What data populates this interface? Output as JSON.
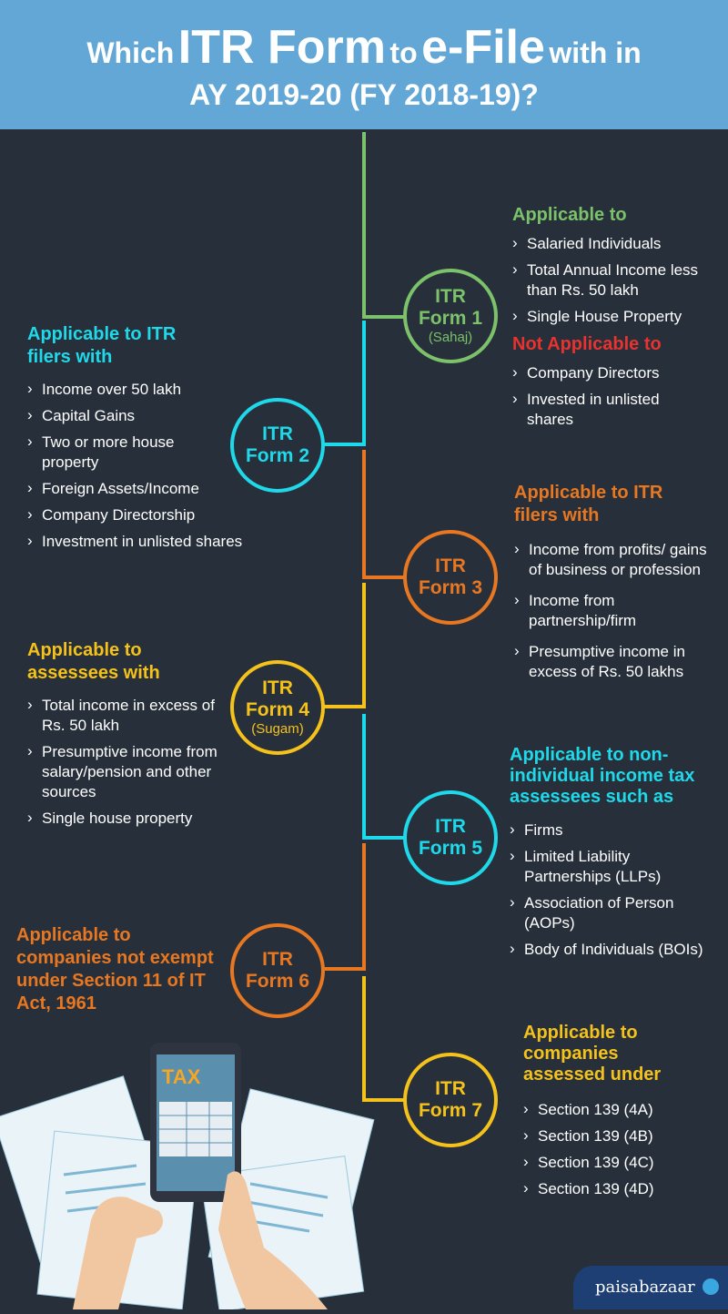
{
  "header": {
    "w1": "Which",
    "w2": "ITR Form",
    "w3": "to",
    "w4": "e-File",
    "w5": "with in",
    "line2": "AY 2019-20 (FY 2018-19)?"
  },
  "colors": {
    "background": "#27303a",
    "header": "#62a7d6",
    "green": "#7bc26a",
    "cyan": "#1fd9ea",
    "orange": "#e87722",
    "yellow": "#f5c21b",
    "red": "#e8322f"
  },
  "forms": {
    "f1": {
      "line1": "ITR",
      "line2": "Form 1",
      "sub": "(Sahaj)"
    },
    "f2": {
      "line1": "ITR",
      "line2": "Form 2"
    },
    "f3": {
      "line1": "ITR",
      "line2": "Form 3"
    },
    "f4": {
      "line1": "ITR",
      "line2": "Form 4",
      "sub": "(Sugam)"
    },
    "f5": {
      "line1": "ITR",
      "line2": "Form 5"
    },
    "f6": {
      "line1": "ITR",
      "line2": "Form 6"
    },
    "f7": {
      "line1": "ITR",
      "line2": "Form 7"
    }
  },
  "itr1": {
    "applicable_heading": "Applicable to",
    "applicable": [
      "Salaried Individuals",
      "Total Annual Income less than Rs. 50 lakh",
      "Single House Property"
    ],
    "not_applicable_heading": "Not Applicable to",
    "not_applicable": [
      "Company Directors",
      "Invested in unlisted shares"
    ]
  },
  "itr2": {
    "heading": "Applicable to ITR filers with",
    "items": [
      "Income over 50 lakh",
      "Capital Gains",
      "Two or more house property",
      "Foreign Assets/Income",
      "Company Directorship",
      "Investment in unlisted shares"
    ]
  },
  "itr3": {
    "heading": "Applicable to ITR filers with",
    "items": [
      "Income from profits/ gains of business or profession",
      "Income from partnership/firm",
      "Presumptive income in excess of Rs. 50 lakhs"
    ]
  },
  "itr4": {
    "heading": "Applicable to assessees with",
    "items": [
      "Total income in excess of Rs. 50 lakh",
      "Presumptive income from salary/pension and other sources",
      "Single house property"
    ]
  },
  "itr5": {
    "heading": "Applicable to non-individual income tax assessees such as",
    "items": [
      "Firms",
      "Limited Liability Partnerships (LLPs)",
      "Association of Person (AOPs)",
      "Body of Individuals (BOIs)"
    ]
  },
  "itr6": {
    "heading": "Applicable to companies not exempt under Section 11 of IT Act, 1961"
  },
  "itr7": {
    "heading": "Applicable to companies assessed under",
    "items": [
      "Section 139 (4A)",
      "Section 139 (4B)",
      "Section 139 (4C)",
      "Section 139 (4D)"
    ]
  },
  "illustration": {
    "phone_label": "TAX"
  },
  "brand": {
    "name": "paisabazaar"
  }
}
